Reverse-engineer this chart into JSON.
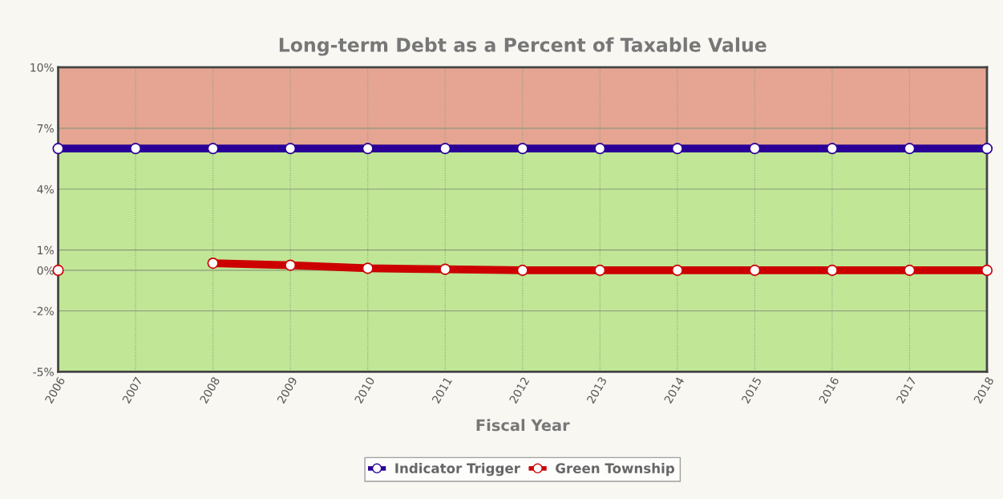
{
  "chart_data": {
    "type": "line",
    "title": "Long-term Debt as a Percent of Taxable Value",
    "xlabel": "Fiscal Year",
    "categories": [
      "2006",
      "2007",
      "2008",
      "2009",
      "2010",
      "2011",
      "2012",
      "2013",
      "2014",
      "2015",
      "2016",
      "2017",
      "2018"
    ],
    "series": [
      {
        "name": "Indicator Trigger",
        "color": "#2a0096",
        "values": [
          6,
          6,
          6,
          6,
          6,
          6,
          6,
          6,
          6,
          6,
          6,
          6,
          6
        ]
      },
      {
        "name": "Green Township",
        "color": "#cc0000",
        "values": [
          0,
          null,
          0.35,
          0.25,
          0.1,
          0.05,
          0,
          0,
          0,
          0,
          0,
          0,
          0
        ]
      }
    ],
    "ylim": [
      -5,
      10
    ],
    "yticks": [
      {
        "value": -5,
        "label": "-5%"
      },
      {
        "value": -2,
        "label": "-2%"
      },
      {
        "value": 0,
        "label": "0%"
      },
      {
        "value": 1,
        "label": "1%"
      },
      {
        "value": 4,
        "label": "4%"
      },
      {
        "value": 7,
        "label": "7%"
      },
      {
        "value": 10,
        "label": "10%"
      }
    ],
    "bands": [
      {
        "axis": "y",
        "from": 6,
        "to": 10,
        "color": "#e5a592"
      },
      {
        "axis": "y",
        "from": -5,
        "to": 6,
        "color": "#c0e696"
      }
    ],
    "grid": true,
    "legend": "bottom",
    "marker": "circle",
    "line_style": "solid"
  }
}
